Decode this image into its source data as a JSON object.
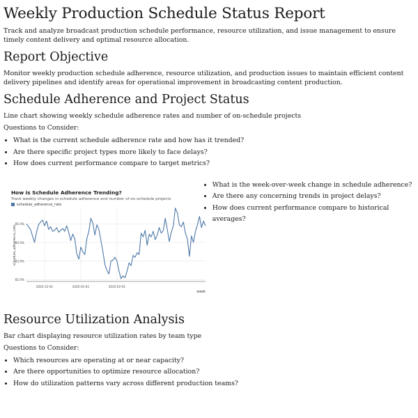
{
  "title": "Weekly Production Schedule Status Report",
  "intro": "Track and analyze broadcast production schedule performance, resource utilization, and issue management to ensure timely content delivery and optimal resource allocation.",
  "objective": {
    "heading": "Report Objective",
    "text": "Monitor weekly production schedule adherence, resource utilization, and production issues to maintain efficient content delivery pipelines and identify areas for operational improvement in broadcasting content production."
  },
  "adherence": {
    "heading": "Schedule Adherence and Project Status",
    "description": "Line chart showing weekly schedule adherence rates and number of on-schedule projects",
    "questions_label": "Questions to Consider:",
    "questions": [
      "What is the current schedule adherence rate and how has it trended?",
      "Are there specific project types more likely to face delays?",
      "How does current performance compare to target metrics?"
    ],
    "side_questions": [
      "What is the week-over-week change in schedule adherence?",
      "Are there any concerning trends in project delays?",
      "How does current performance compare to historical averages?"
    ]
  },
  "resource": {
    "heading": "Resource Utilization Analysis",
    "description": "Bar chart displaying resource utilization rates by team type",
    "questions_label": "Questions to Consider:",
    "questions": [
      "Which resources are operating at or near capacity?",
      "Are there opportunities to optimize resource allocation?",
      "How do utilization patterns vary across different production teams?"
    ]
  },
  "chart_data": {
    "type": "line",
    "title": "How is Schedule Adherence Trending?",
    "subtitle": "Track weekly changes in schedule adherence and number of on-schedule projects",
    "legend": [
      "schedule_adherence_rate"
    ],
    "legend_position": "top-left",
    "xlabel": "week",
    "ylabel": "schedule_adherence_rate",
    "x_ticks": [
      "2024-12-01",
      "2025-01-01",
      "2025-02-01"
    ],
    "y_ticks": [
      "82.0%",
      "83.0%",
      "84.0%",
      "85.0%"
    ],
    "ylim": [
      81.9,
      85.8
    ],
    "grid": true,
    "color": "#4c78a8",
    "series": [
      {
        "name": "schedule_adherence_rate",
        "values": [
          85.0,
          84.85,
          84.7,
          84.35,
          84.0,
          84.55,
          84.95,
          85.1,
          85.2,
          84.9,
          85.15,
          84.7,
          84.85,
          84.6,
          84.65,
          84.8,
          84.55,
          84.65,
          84.75,
          84.6,
          84.9,
          84.55,
          84.1,
          84.45,
          84.2,
          83.4,
          83.1,
          83.75,
          83.5,
          83.35,
          84.2,
          84.6,
          85.3,
          85.05,
          84.4,
          84.95,
          84.7,
          84.1,
          83.5,
          82.8,
          82.5,
          82.3,
          83.0,
          83.05,
          83.2,
          83.0,
          82.45,
          82.05,
          82.2,
          82.1,
          82.45,
          82.9,
          82.75,
          83.3,
          83.2,
          83.45,
          83.35,
          84.5,
          84.3,
          84.65,
          83.85,
          84.45,
          84.3,
          84.6,
          84.15,
          84.4,
          84.8,
          84.5,
          84.65,
          85.3,
          84.7,
          84.05,
          84.55,
          84.9,
          85.85,
          85.6,
          84.95,
          84.85,
          85.1,
          84.5,
          84.2,
          83.25,
          84.35,
          84.0,
          84.6,
          84.95,
          85.4,
          84.8,
          85.15,
          84.9
        ]
      }
    ]
  }
}
